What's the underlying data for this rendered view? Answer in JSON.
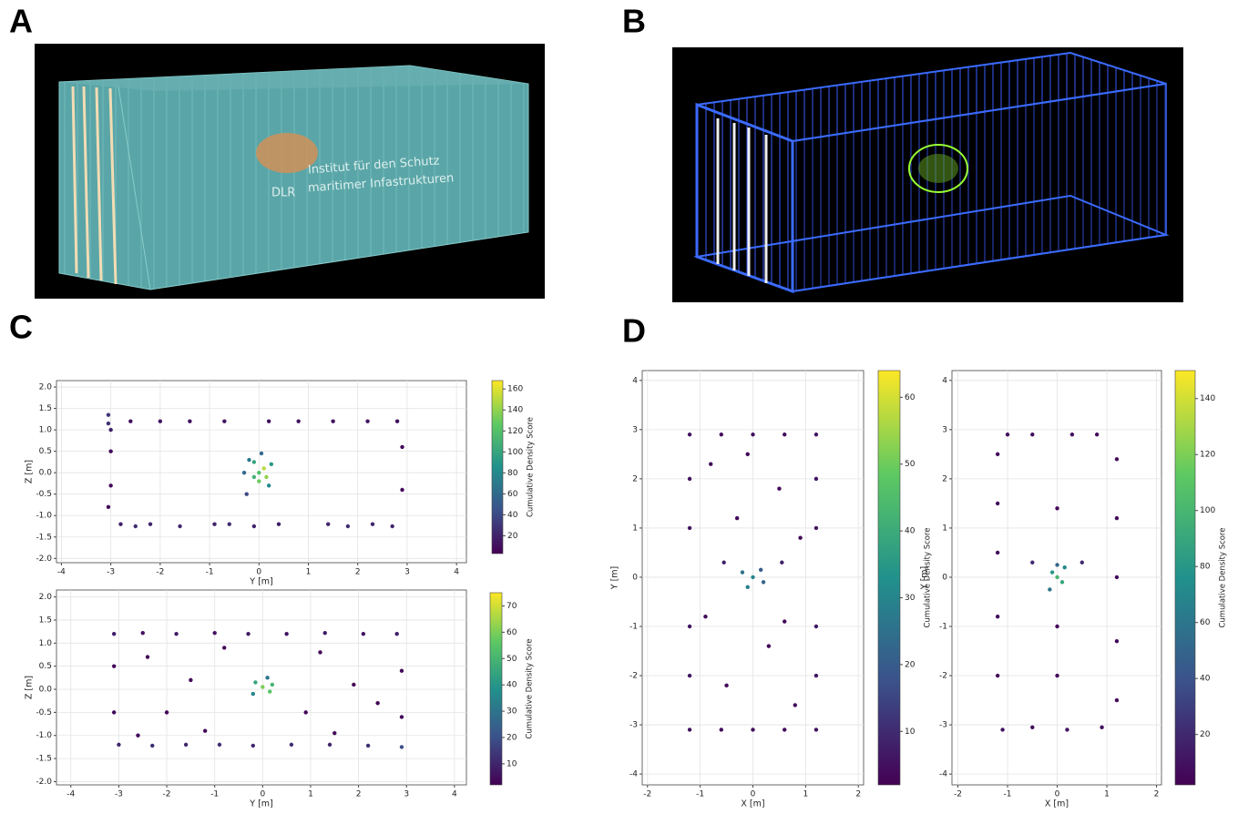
{
  "panel_labels": [
    "A",
    "B",
    "C",
    "D"
  ],
  "render_a": {
    "logo": "DLR",
    "line1": "Institut für den Schutz",
    "line2": "maritimer Infastrukturen"
  },
  "chart_data": [
    {
      "type": "scatter",
      "x_label": "Y [m]",
      "y_label": "Z [m]",
      "xlim": [
        -4.1,
        4.2
      ],
      "ylim": [
        -2.1,
        2.15
      ],
      "xticks": [
        -4,
        -3,
        -2,
        -1,
        0,
        1,
        2,
        3,
        4
      ],
      "yticks": [
        -2.0,
        -1.5,
        -1.0,
        -0.5,
        0.0,
        0.5,
        1.0,
        1.5,
        2.0
      ],
      "grid": true,
      "colorbar": {
        "label": "Cumulative Density Score",
        "lim": [
          3,
          168
        ],
        "ticks": [
          20,
          40,
          60,
          80,
          100,
          120,
          140,
          160
        ],
        "colormap": "viridis"
      },
      "points": [
        [
          -3.05,
          1.35,
          30
        ],
        [
          -3.05,
          1.15,
          28
        ],
        [
          -3.0,
          1.0,
          20
        ],
        [
          -3.0,
          0.5,
          8
        ],
        [
          -3.0,
          -0.3,
          8
        ],
        [
          -3.05,
          -0.8,
          8
        ],
        [
          -2.6,
          1.2,
          10
        ],
        [
          -2.0,
          1.2,
          12
        ],
        [
          -1.4,
          1.2,
          10
        ],
        [
          -0.7,
          1.2,
          12
        ],
        [
          0.2,
          1.2,
          10
        ],
        [
          0.8,
          1.2,
          12
        ],
        [
          1.5,
          1.2,
          10
        ],
        [
          2.2,
          1.2,
          12
        ],
        [
          2.8,
          1.2,
          10
        ],
        [
          2.9,
          0.6,
          6
        ],
        [
          2.9,
          -0.4,
          6
        ],
        [
          -2.8,
          -1.2,
          20
        ],
        [
          -2.5,
          -1.25,
          25
        ],
        [
          -2.2,
          -1.2,
          22
        ],
        [
          -1.6,
          -1.25,
          22
        ],
        [
          -0.9,
          -1.2,
          20
        ],
        [
          -0.6,
          -1.2,
          25
        ],
        [
          -0.1,
          -1.25,
          20
        ],
        [
          0.4,
          -1.2,
          18
        ],
        [
          1.4,
          -1.2,
          22
        ],
        [
          1.8,
          -1.25,
          25
        ],
        [
          2.3,
          -1.2,
          22
        ],
        [
          2.7,
          -1.25,
          22
        ],
        [
          0,
          0,
          120
        ],
        [
          0.1,
          0.1,
          150
        ],
        [
          -0.1,
          -0.1,
          110
        ],
        [
          -0.2,
          0.3,
          70
        ],
        [
          0.2,
          -0.3,
          80
        ],
        [
          -0.25,
          -0.5,
          40
        ],
        [
          0.05,
          0.45,
          60
        ],
        [
          0.25,
          0.2,
          90
        ],
        [
          -0.3,
          0,
          60
        ],
        [
          0,
          -0.2,
          130
        ],
        [
          -0.1,
          0.25,
          100
        ],
        [
          0.15,
          -0.1,
          140
        ]
      ]
    },
    {
      "type": "scatter",
      "x_label": "Y [m]",
      "y_label": "Z [m]",
      "xlim": [
        -4.3,
        4.25
      ],
      "ylim": [
        -2.07,
        2.15
      ],
      "xticks": [
        -4,
        -3,
        -2,
        -1,
        0,
        1,
        2,
        3,
        4
      ],
      "yticks": [
        -2.0,
        -1.5,
        -1.0,
        -0.5,
        0.0,
        0.5,
        1.0,
        1.5,
        2.0
      ],
      "grid": true,
      "colorbar": {
        "label": "Cumulative Density Score",
        "lim": [
          2,
          75
        ],
        "ticks": [
          10,
          20,
          30,
          40,
          50,
          60,
          70
        ],
        "colormap": "viridis"
      },
      "points": [
        [
          -3.1,
          1.2,
          8
        ],
        [
          -2.5,
          1.22,
          6
        ],
        [
          -1.8,
          1.2,
          8
        ],
        [
          -1.0,
          1.22,
          6
        ],
        [
          -0.3,
          1.2,
          8
        ],
        [
          0.5,
          1.2,
          6
        ],
        [
          1.3,
          1.22,
          8
        ],
        [
          2.1,
          1.2,
          6
        ],
        [
          2.8,
          1.2,
          8
        ],
        [
          -3.1,
          0.5,
          4
        ],
        [
          -3.1,
          -0.5,
          4
        ],
        [
          2.9,
          0.4,
          4
        ],
        [
          2.9,
          -0.6,
          4
        ],
        [
          -2.4,
          0.7,
          3
        ],
        [
          -1.5,
          0.2,
          3
        ],
        [
          -2.0,
          -0.5,
          3
        ],
        [
          1.2,
          0.8,
          3
        ],
        [
          1.9,
          0.1,
          3
        ],
        [
          2.4,
          -0.3,
          3
        ],
        [
          -0.8,
          0.9,
          3
        ],
        [
          0.9,
          -0.5,
          3
        ],
        [
          -1.2,
          -0.9,
          4
        ],
        [
          1.5,
          -0.95,
          4
        ],
        [
          -2.6,
          -1.0,
          4
        ],
        [
          -3.0,
          -1.2,
          10
        ],
        [
          -2.3,
          -1.22,
          12
        ],
        [
          -1.6,
          -1.2,
          10
        ],
        [
          -0.9,
          -1.2,
          12
        ],
        [
          -0.2,
          -1.22,
          10
        ],
        [
          0.6,
          -1.2,
          12
        ],
        [
          1.4,
          -1.2,
          10
        ],
        [
          2.2,
          -1.22,
          12
        ],
        [
          2.9,
          -1.25,
          20
        ],
        [
          0,
          0.05,
          60
        ],
        [
          -0.15,
          0.15,
          45
        ],
        [
          0.15,
          -0.05,
          55
        ],
        [
          -0.2,
          -0.1,
          35
        ],
        [
          0.1,
          0.25,
          30
        ],
        [
          0.2,
          0.1,
          50
        ]
      ]
    },
    {
      "type": "scatter",
      "x_label": "X [m]",
      "y_label": "Y [m]",
      "xlim": [
        -2.1,
        2.1
      ],
      "ylim": [
        -4.22,
        4.2
      ],
      "xticks": [
        -2,
        -1,
        0,
        1,
        2
      ],
      "yticks": [
        -4,
        -3,
        -2,
        -1,
        0,
        1,
        2,
        3,
        4
      ],
      "grid": true,
      "colorbar": {
        "label": "Cumulative Density Score",
        "lim": [
          2,
          64
        ],
        "ticks": [
          10,
          20,
          30,
          40,
          50,
          60
        ],
        "colormap": "viridis"
      },
      "points": [
        [
          -1.2,
          2.9,
          5
        ],
        [
          -0.6,
          2.9,
          4
        ],
        [
          0,
          2.9,
          5
        ],
        [
          0.6,
          2.9,
          4
        ],
        [
          1.2,
          2.9,
          5
        ],
        [
          -1.2,
          -3.1,
          5
        ],
        [
          -0.6,
          -3.1,
          4
        ],
        [
          0,
          -3.1,
          5
        ],
        [
          0.6,
          -3.1,
          4
        ],
        [
          1.2,
          -3.1,
          5
        ],
        [
          -1.2,
          2.0,
          6
        ],
        [
          -1.2,
          1.0,
          6
        ],
        [
          -1.2,
          -1.0,
          6
        ],
        [
          -1.2,
          -2.0,
          6
        ],
        [
          1.2,
          2.0,
          6
        ],
        [
          1.2,
          1.0,
          6
        ],
        [
          1.2,
          -1.0,
          6
        ],
        [
          1.2,
          -2.0,
          6
        ],
        [
          -0.8,
          2.3,
          3
        ],
        [
          0.5,
          1.8,
          3
        ],
        [
          -0.3,
          1.2,
          3
        ],
        [
          0.9,
          0.8,
          3
        ],
        [
          -0.9,
          -0.8,
          3
        ],
        [
          0.3,
          -1.4,
          3
        ],
        [
          -0.5,
          -2.2,
          3
        ],
        [
          0.8,
          -2.6,
          3
        ],
        [
          -0.1,
          2.5,
          3
        ],
        [
          0.6,
          -0.9,
          3
        ],
        [
          0,
          0,
          30
        ],
        [
          -0.2,
          0.1,
          25
        ],
        [
          0.2,
          -0.1,
          22
        ],
        [
          -0.1,
          -0.2,
          28
        ],
        [
          0.15,
          0.15,
          20
        ],
        [
          -0.55,
          0.3,
          8
        ],
        [
          0.55,
          0.3,
          8
        ]
      ]
    },
    {
      "type": "scatter",
      "x_label": "X [m]",
      "y_label": "Y [m]",
      "xlim": [
        -2.12,
        2.1
      ],
      "ylim": [
        -4.22,
        4.2
      ],
      "xticks": [
        -2,
        -1,
        0,
        1,
        2
      ],
      "yticks": [
        -4,
        -3,
        -2,
        -1,
        0,
        1,
        2,
        3,
        4
      ],
      "grid": true,
      "colorbar": {
        "label": "Cumulative Density Score",
        "lim": [
          2,
          150
        ],
        "ticks": [
          20,
          40,
          60,
          80,
          100,
          120,
          140
        ],
        "colormap": "viridis"
      },
      "points": [
        [
          -1.0,
          2.9,
          8
        ],
        [
          -0.5,
          2.9,
          6
        ],
        [
          0.3,
          2.9,
          8
        ],
        [
          0.8,
          2.9,
          6
        ],
        [
          -1.1,
          -3.1,
          10
        ],
        [
          -0.5,
          -3.05,
          8
        ],
        [
          0.2,
          -3.1,
          10
        ],
        [
          0.9,
          -3.05,
          8
        ],
        [
          -1.2,
          2.5,
          8
        ],
        [
          -1.2,
          1.5,
          6
        ],
        [
          -1.2,
          0.5,
          6
        ],
        [
          -1.2,
          -0.8,
          6
        ],
        [
          -1.2,
          -2.0,
          6
        ],
        [
          1.2,
          2.4,
          8
        ],
        [
          1.2,
          1.2,
          6
        ],
        [
          1.2,
          0.0,
          6
        ],
        [
          1.2,
          -1.3,
          6
        ],
        [
          1.2,
          -2.5,
          6
        ],
        [
          0,
          1.4,
          4
        ],
        [
          0,
          -2.0,
          4
        ],
        [
          0,
          -1.0,
          4
        ],
        [
          0,
          0,
          100
        ],
        [
          -0.1,
          0.1,
          80
        ],
        [
          0.1,
          -0.1,
          90
        ],
        [
          -0.15,
          -0.25,
          60
        ],
        [
          0.15,
          0.2,
          70
        ],
        [
          -0.5,
          0.3,
          20
        ],
        [
          0.5,
          0.3,
          20
        ],
        [
          0,
          0.25,
          50
        ]
      ]
    }
  ]
}
